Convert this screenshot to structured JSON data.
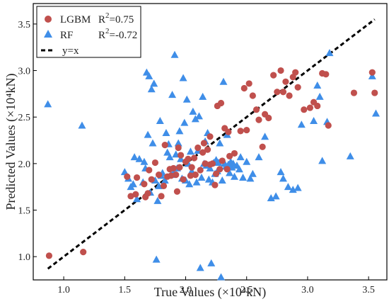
{
  "chart_data": {
    "type": "scatter",
    "xlabel": "True Values  (×10⁴kN)",
    "ylabel": "Predicted Values (×10⁴kN)",
    "xlim": [
      0.75,
      3.65
    ],
    "ylim": [
      0.75,
      3.72
    ],
    "xticks": [
      "1.0",
      "1.5",
      "2.0",
      "2.5",
      "3.0",
      "3.5"
    ],
    "yticks": [
      "1.0",
      "1.5",
      "2.0",
      "2.5",
      "3.0",
      "3.5"
    ],
    "grid": false,
    "legend_position": "top-left",
    "series": [
      {
        "name": "LGBM",
        "marker": "circle",
        "color": "#c0504d",
        "r2_label": "R",
        "r2_sup": "2",
        "r2_value": "=0.75",
        "points": [
          [
            0.88,
            1.01
          ],
          [
            1.16,
            1.05
          ],
          [
            1.52,
            1.86
          ],
          [
            1.55,
            1.65
          ],
          [
            1.59,
            1.67
          ],
          [
            1.6,
            1.85
          ],
          [
            1.66,
            1.78
          ],
          [
            1.67,
            1.64
          ],
          [
            1.69,
            1.68
          ],
          [
            1.7,
            1.93
          ],
          [
            1.72,
            1.83
          ],
          [
            1.75,
            2.01
          ],
          [
            1.78,
            1.88
          ],
          [
            1.8,
            1.65
          ],
          [
            1.82,
            1.76
          ],
          [
            1.83,
            2.2
          ],
          [
            1.85,
            1.86
          ],
          [
            1.87,
            1.94
          ],
          [
            1.88,
            1.87
          ],
          [
            1.9,
            1.95
          ],
          [
            1.92,
            1.88
          ],
          [
            1.93,
            1.7
          ],
          [
            1.94,
            2.17
          ],
          [
            1.95,
            1.96
          ],
          [
            1.96,
            2.09
          ],
          [
            1.98,
            1.83
          ],
          [
            2.0,
            2.02
          ],
          [
            2.02,
            2.05
          ],
          [
            2.04,
            1.87
          ],
          [
            2.05,
            1.96
          ],
          [
            2.07,
            2.06
          ],
          [
            2.08,
            1.88
          ],
          [
            2.1,
            2.17
          ],
          [
            2.12,
            1.93
          ],
          [
            2.14,
            2.12
          ],
          [
            2.15,
            2.22
          ],
          [
            2.16,
            2.0
          ],
          [
            2.18,
            2.15
          ],
          [
            2.2,
            1.99
          ],
          [
            2.2,
            2.29
          ],
          [
            2.22,
            2.0
          ],
          [
            2.24,
            1.77
          ],
          [
            2.25,
            1.89
          ],
          [
            2.26,
            2.62
          ],
          [
            2.28,
            1.94
          ],
          [
            2.29,
            2.65
          ],
          [
            2.3,
            2.03
          ],
          [
            2.32,
            2.38
          ],
          [
            2.34,
            1.94
          ],
          [
            2.35,
            2.34
          ],
          [
            2.36,
            2.08
          ],
          [
            2.4,
            2.11
          ],
          [
            2.45,
            2.35
          ],
          [
            2.48,
            2.81
          ],
          [
            2.5,
            2.36
          ],
          [
            2.52,
            2.86
          ],
          [
            2.55,
            2.73
          ],
          [
            2.58,
            2.58
          ],
          [
            2.6,
            2.47
          ],
          [
            2.63,
            2.18
          ],
          [
            2.65,
            2.53
          ],
          [
            2.68,
            2.49
          ],
          [
            2.72,
            2.95
          ],
          [
            2.75,
            2.77
          ],
          [
            2.78,
            3.0
          ],
          [
            2.8,
            2.77
          ],
          [
            2.82,
            2.88
          ],
          [
            2.85,
            2.73
          ],
          [
            2.88,
            2.93
          ],
          [
            2.9,
            2.98
          ],
          [
            2.92,
            2.82
          ],
          [
            2.97,
            2.58
          ],
          [
            3.02,
            2.6
          ],
          [
            3.05,
            2.66
          ],
          [
            3.08,
            2.62
          ],
          [
            3.12,
            2.97
          ],
          [
            3.15,
            2.96
          ],
          [
            3.17,
            2.41
          ],
          [
            3.38,
            2.76
          ],
          [
            3.53,
            2.98
          ],
          [
            3.55,
            2.76
          ]
        ]
      },
      {
        "name": "RF",
        "marker": "triangle",
        "color": "#3f8ee8",
        "r2_label": "R",
        "r2_sup": "2",
        "r2_value": "=-0.72",
        "points": [
          [
            0.87,
            2.64
          ],
          [
            1.15,
            2.41
          ],
          [
            1.5,
            1.91
          ],
          [
            1.53,
            1.84
          ],
          [
            1.55,
            1.75
          ],
          [
            1.57,
            1.78
          ],
          [
            1.58,
            2.07
          ],
          [
            1.6,
            1.62
          ],
          [
            1.62,
            2.05
          ],
          [
            1.65,
            1.8
          ],
          [
            1.66,
            2.02
          ],
          [
            1.67,
            1.95
          ],
          [
            1.68,
            2.98
          ],
          [
            1.69,
            2.31
          ],
          [
            1.7,
            2.94
          ],
          [
            1.71,
            1.69
          ],
          [
            1.72,
            2.8
          ],
          [
            1.73,
            2.22
          ],
          [
            1.74,
            2.86
          ],
          [
            1.75,
            1.82
          ],
          [
            1.76,
            0.97
          ],
          [
            1.77,
            1.6
          ],
          [
            1.78,
            1.76
          ],
          [
            1.79,
            2.46
          ],
          [
            1.8,
            1.87
          ],
          [
            1.81,
            1.9
          ],
          [
            1.83,
            1.82
          ],
          [
            1.84,
            2.33
          ],
          [
            1.85,
            2.12
          ],
          [
            1.86,
            2.21
          ],
          [
            1.87,
            2.07
          ],
          [
            1.88,
            1.88
          ],
          [
            1.89,
            2.74
          ],
          [
            1.9,
            1.9
          ],
          [
            1.91,
            3.17
          ],
          [
            1.92,
            2.1
          ],
          [
            1.93,
            1.95
          ],
          [
            1.94,
            2.22
          ],
          [
            1.95,
            2.35
          ],
          [
            1.96,
            2.05
          ],
          [
            1.97,
            1.84
          ],
          [
            1.98,
            2.92
          ],
          [
            1.99,
            2.44
          ],
          [
            2.0,
            1.82
          ],
          [
            2.01,
            2.69
          ],
          [
            2.02,
            2.0
          ],
          [
            2.03,
            1.78
          ],
          [
            2.04,
            2.13
          ],
          [
            2.05,
            1.92
          ],
          [
            2.06,
            2.56
          ],
          [
            2.08,
            2.48
          ],
          [
            2.09,
            1.8
          ],
          [
            2.1,
            2.14
          ],
          [
            2.11,
            2.51
          ],
          [
            2.12,
            0.88
          ],
          [
            2.13,
            1.85
          ],
          [
            2.14,
            2.72
          ],
          [
            2.15,
            2.0
          ],
          [
            2.16,
            2.24
          ],
          [
            2.17,
            1.98
          ],
          [
            2.18,
            2.33
          ],
          [
            2.19,
            1.83
          ],
          [
            2.2,
            1.95
          ],
          [
            2.21,
            0.93
          ],
          [
            2.22,
            1.8
          ],
          [
            2.23,
            2.01
          ],
          [
            2.24,
            1.89
          ],
          [
            2.25,
            2.04
          ],
          [
            2.26,
            1.92
          ],
          [
            2.27,
            2.01
          ],
          [
            2.28,
            2.22
          ],
          [
            2.29,
            0.78
          ],
          [
            2.3,
            1.82
          ],
          [
            2.31,
            2.88
          ],
          [
            2.32,
            2.0
          ],
          [
            2.33,
            1.97
          ],
          [
            2.34,
            2.31
          ],
          [
            2.35,
            1.99
          ],
          [
            2.36,
            1.9
          ],
          [
            2.37,
            2.02
          ],
          [
            2.38,
            1.96
          ],
          [
            2.39,
            2.0
          ],
          [
            2.4,
            1.86
          ],
          [
            2.42,
            1.98
          ],
          [
            2.44,
            1.94
          ],
          [
            2.45,
            2.07
          ],
          [
            2.47,
            1.85
          ],
          [
            2.5,
            2.02
          ],
          [
            2.53,
            1.84
          ],
          [
            2.55,
            1.89
          ],
          [
            2.6,
            2.07
          ],
          [
            2.65,
            2.29
          ],
          [
            2.7,
            1.63
          ],
          [
            2.74,
            1.65
          ],
          [
            2.78,
            1.91
          ],
          [
            2.8,
            1.84
          ],
          [
            2.84,
            1.75
          ],
          [
            2.88,
            1.72
          ],
          [
            2.92,
            1.74
          ],
          [
            2.95,
            2.42
          ],
          [
            3.05,
            2.46
          ],
          [
            3.08,
            2.84
          ],
          [
            3.1,
            2.72
          ],
          [
            3.12,
            2.03
          ],
          [
            3.16,
            2.45
          ],
          [
            3.18,
            3.19
          ],
          [
            3.35,
            2.08
          ],
          [
            3.53,
            2.94
          ],
          [
            3.56,
            2.54
          ]
        ]
      },
      {
        "name": "y=x",
        "marker": "line",
        "color": "#000000",
        "points": [
          [
            0.87,
            0.87
          ],
          [
            3.55,
            3.55
          ]
        ]
      }
    ]
  }
}
